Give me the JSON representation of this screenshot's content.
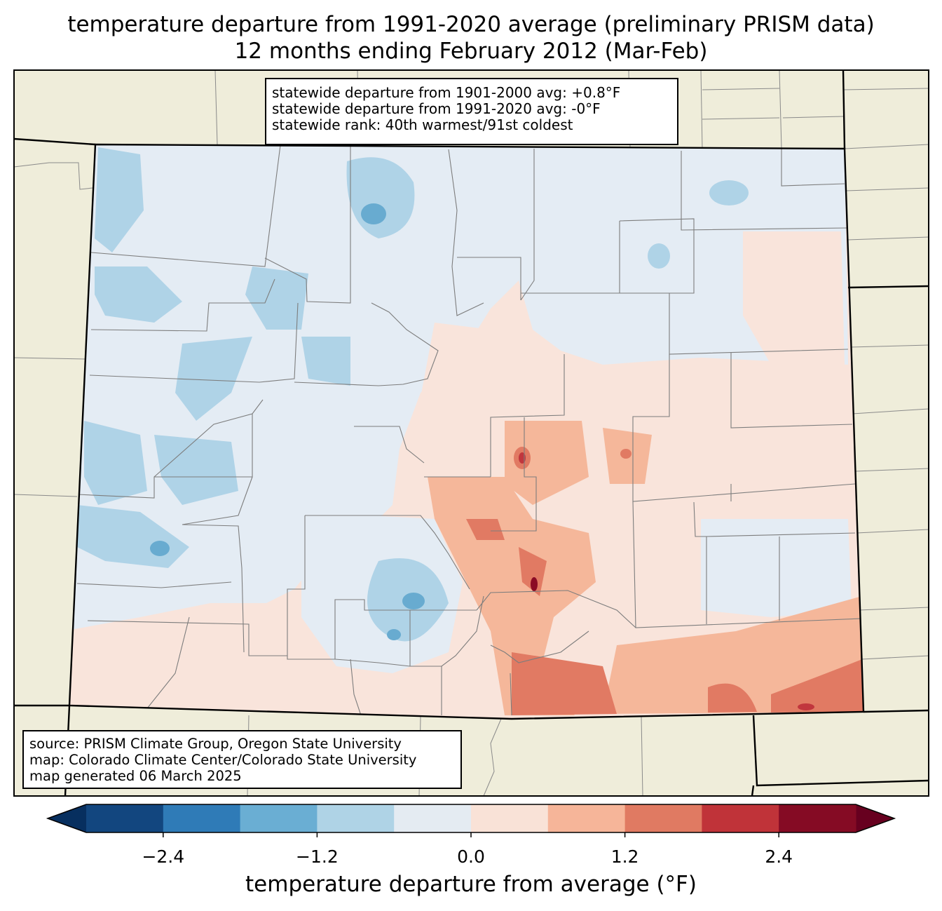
{
  "title": {
    "line1": "temperature departure from 1991-2020 average (preliminary PRISM data)",
    "line2": "12 months ending February 2012 (Mar-Feb)"
  },
  "stats_box": {
    "line1": "statewide departure from 1901-2000 avg: +0.8°F",
    "line2": "statewide departure from 1991-2020 avg: -0°F",
    "line3": "statewide rank: 40th warmest/91st coldest"
  },
  "source_box": {
    "line1": "source: PRISM Climate Group, Oregon State University",
    "line2": "map: Colorado Climate Center/Colorado State University",
    "line3": "map generated 06 March 2025"
  },
  "colors": {
    "land_outside": "#efedda",
    "anomaly_0_to_0.6": "#f9e4db",
    "anomaly_m0.6_to_0": "#e4ecf4",
    "anomaly_m1.2_to_m0.6": "#afd3e7",
    "anomaly_m1.8_to_m1.2": "#68abd0",
    "anomaly_0.6_to_1.2": "#f5b79a",
    "anomaly_1.2_to_1.8": "#e17a63",
    "anomaly_1.8_to_2.4": "#c1363d",
    "anomaly_2.4_to_3.0": "#8b0b25"
  },
  "colorbar": {
    "label": "temperature departure from average (°F)",
    "levels": [
      -3.0,
      -2.4,
      -1.8,
      -1.2,
      -0.6,
      0.0,
      0.6,
      1.2,
      1.8,
      2.4,
      3.0
    ],
    "colors": [
      "#12467f",
      "#2f7bb7",
      "#6aaed3",
      "#afd3e6",
      "#e4ebf2",
      "#f9e2d7",
      "#f6b599",
      "#e07a62",
      "#c03339",
      "#850b24"
    ],
    "extend_low_color": "#072f5f",
    "extend_high_color": "#67001f",
    "ticks": [
      "−2.4",
      "−1.2",
      "0.0",
      "1.2",
      "2.4"
    ],
    "tick_values": [
      -2.4,
      -1.2,
      0.0,
      1.2,
      2.4
    ]
  }
}
